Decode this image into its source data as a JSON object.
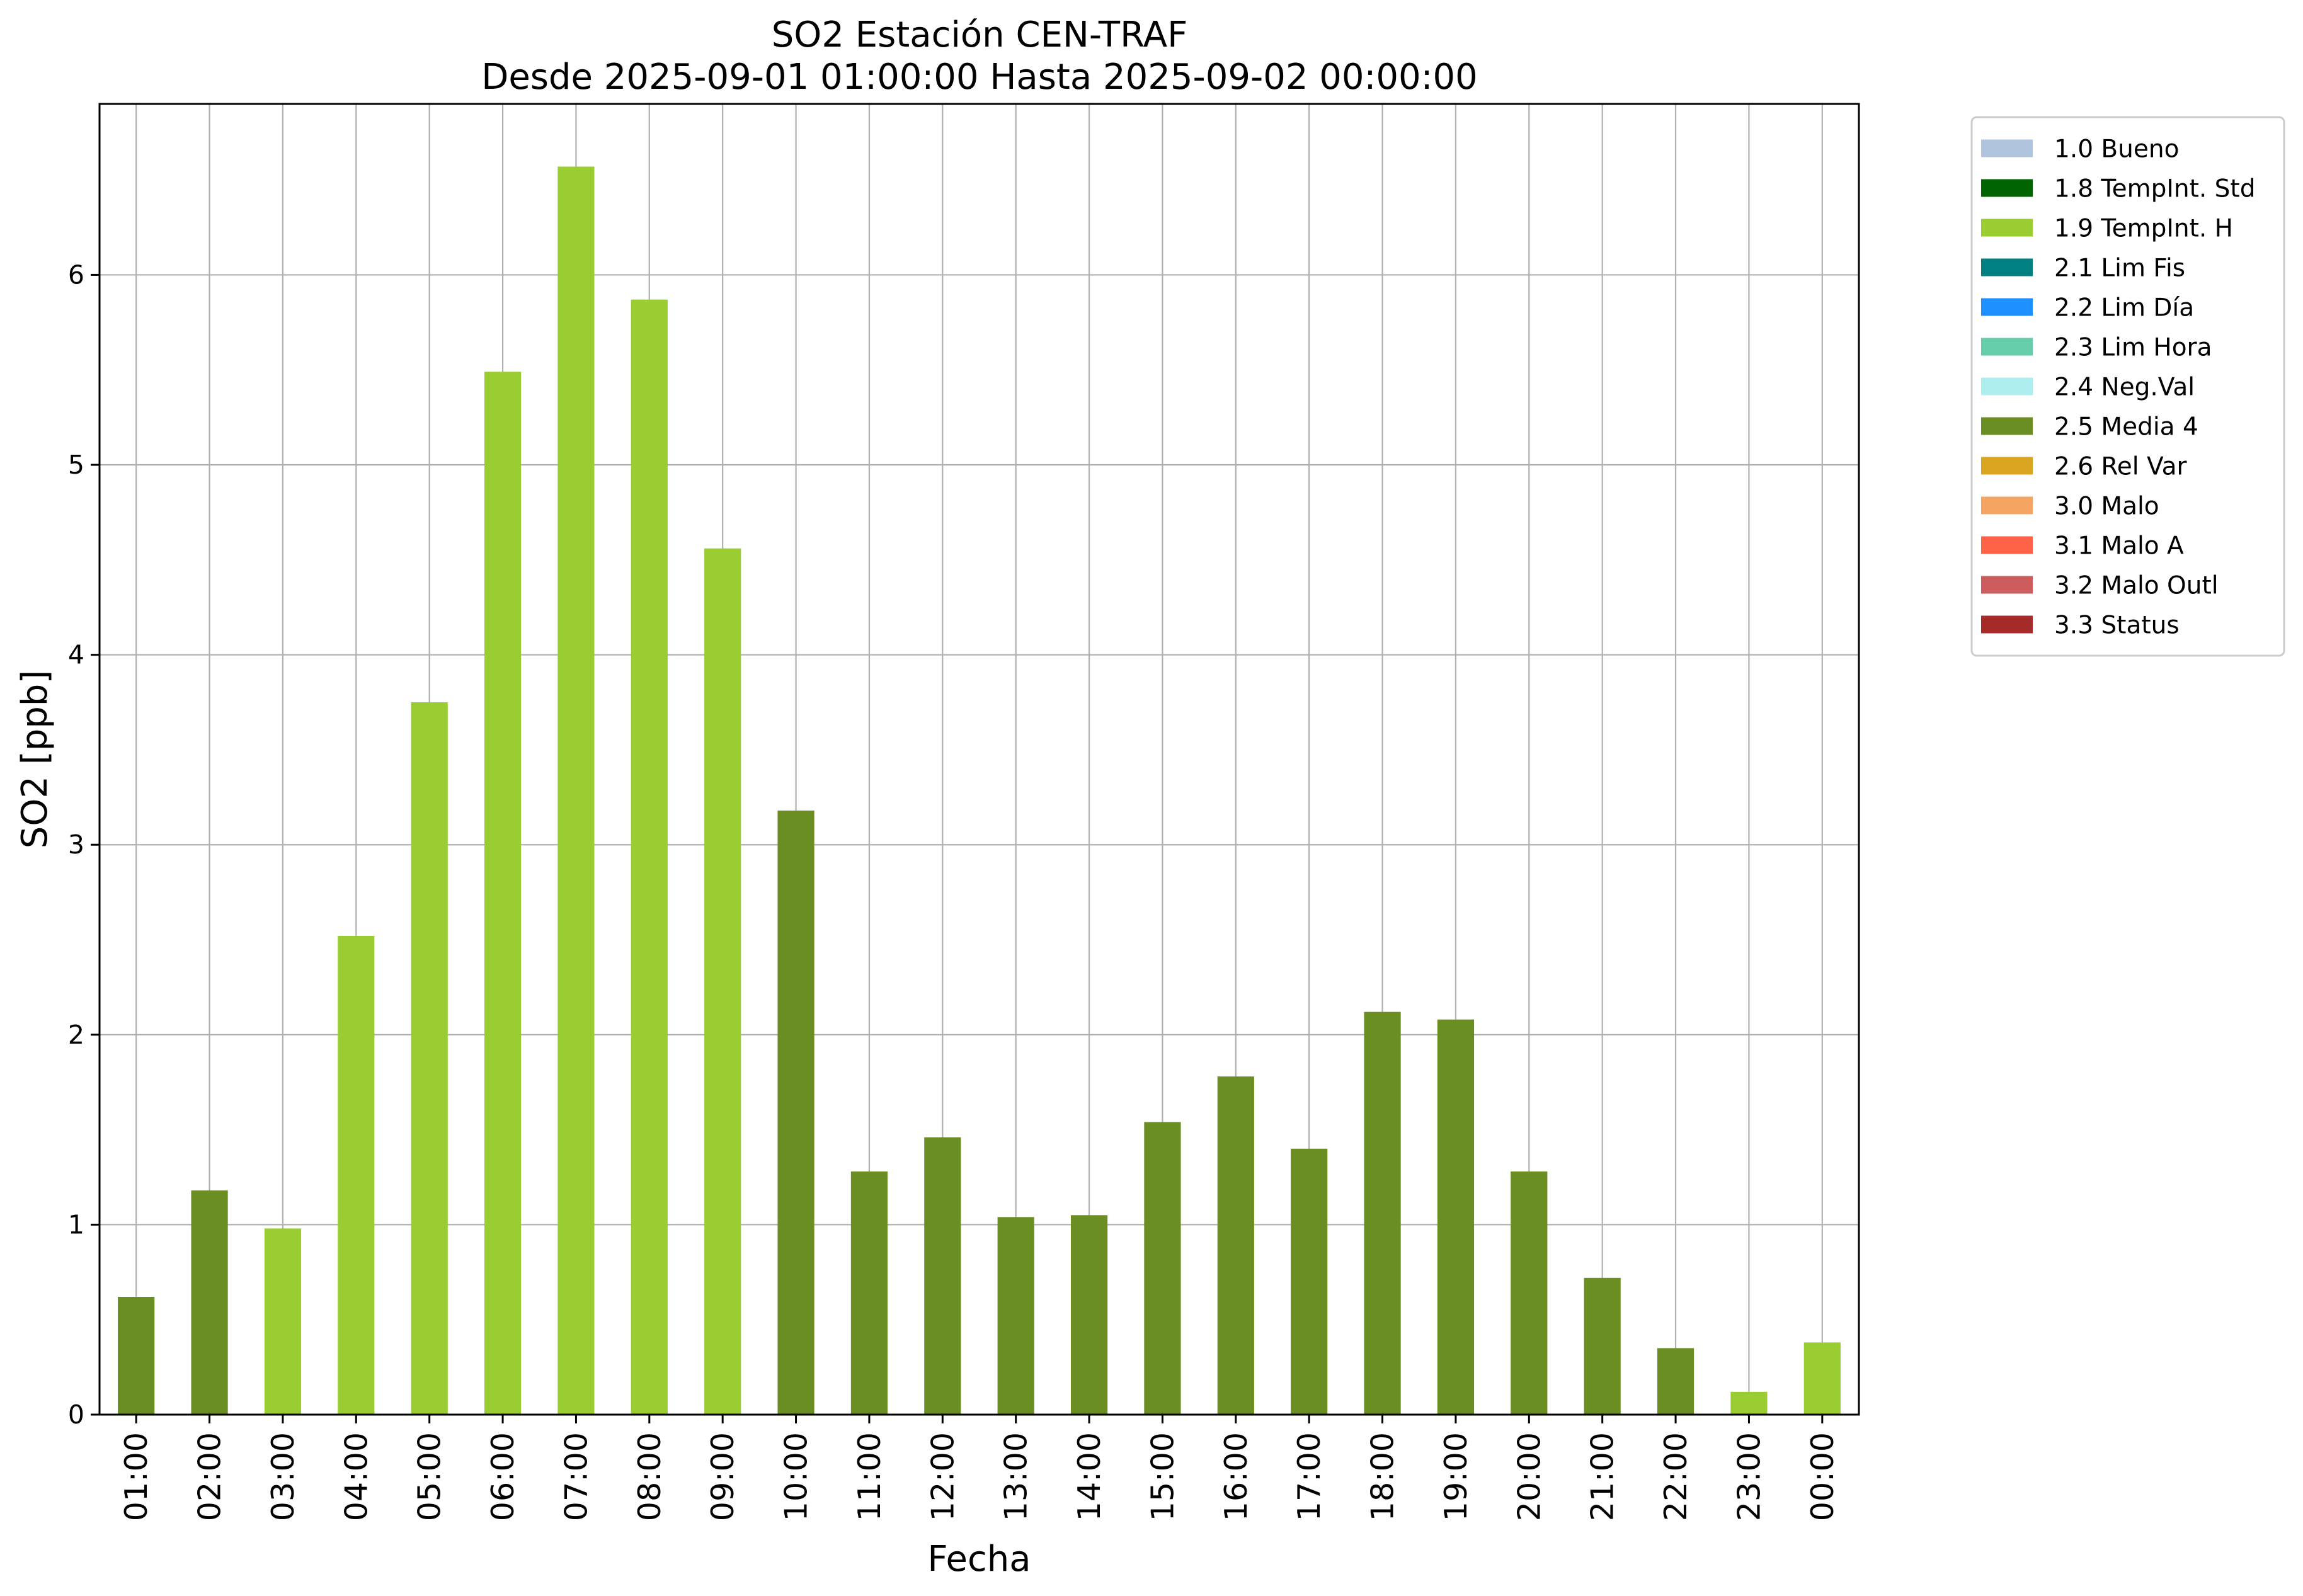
{
  "chart_data": {
    "type": "bar",
    "title": "SO2 Estación CEN-TRAF",
    "subtitle": "Desde 2025-09-01 01:00:00 Hasta 2025-09-02 00:00:00",
    "xlabel": "Fecha",
    "ylabel": "SO2 [ppb]",
    "ylim": [
      0,
      6.9
    ],
    "yticks": [
      0,
      1,
      2,
      3,
      4,
      5,
      6
    ],
    "grid": true,
    "legend_position": "outside-top-right",
    "categories": [
      "01:00",
      "02:00",
      "03:00",
      "04:00",
      "05:00",
      "06:00",
      "07:00",
      "08:00",
      "09:00",
      "10:00",
      "11:00",
      "12:00",
      "13:00",
      "14:00",
      "15:00",
      "16:00",
      "17:00",
      "18:00",
      "19:00",
      "20:00",
      "21:00",
      "22:00",
      "23:00",
      "00:00"
    ],
    "values": [
      0.62,
      1.18,
      0.98,
      2.52,
      3.75,
      5.49,
      6.57,
      5.87,
      4.56,
      3.18,
      1.28,
      1.46,
      1.04,
      1.05,
      1.54,
      1.78,
      1.4,
      2.12,
      2.08,
      1.28,
      0.72,
      0.35,
      0.12,
      0.38
    ],
    "flags": [
      "2.5 Media 4",
      "2.5 Media 4",
      "1.9 TempInt. H",
      "1.9 TempInt. H",
      "1.9 TempInt. H",
      "1.9 TempInt. H",
      "1.9 TempInt. H",
      "1.9 TempInt. H",
      "1.9 TempInt. H",
      "2.5 Media 4",
      "2.5 Media 4",
      "2.5 Media 4",
      "2.5 Media 4",
      "2.5 Media 4",
      "2.5 Media 4",
      "2.5 Media 4",
      "2.5 Media 4",
      "2.5 Media 4",
      "2.5 Media 4",
      "2.5 Media 4",
      "2.5 Media 4",
      "2.5 Media 4",
      "1.9 TempInt. H",
      "1.9 TempInt. H"
    ],
    "legend": [
      {
        "label": "1.0 Bueno",
        "color": "#b0c4de"
      },
      {
        "label": "1.8 TempInt. Std",
        "color": "#006400"
      },
      {
        "label": "1.9 TempInt. H",
        "color": "#9acd32"
      },
      {
        "label": "2.1 Lim Fis",
        "color": "#008080"
      },
      {
        "label": "2.2 Lim Día",
        "color": "#1e90ff"
      },
      {
        "label": "2.3 Lim Hora",
        "color": "#66cdaa"
      },
      {
        "label": "2.4 Neg.Val",
        "color": "#afeeee"
      },
      {
        "label": "2.5 Media 4",
        "color": "#6b8e23"
      },
      {
        "label": "2.6 Rel Var",
        "color": "#daa520"
      },
      {
        "label": "3.0 Malo",
        "color": "#f4a460"
      },
      {
        "label": "3.1 Malo A",
        "color": "#ff6347"
      },
      {
        "label": "3.2 Malo Outl",
        "color": "#cd5c5c"
      },
      {
        "label": "3.3 Status",
        "color": "#a52a2a"
      }
    ]
  }
}
